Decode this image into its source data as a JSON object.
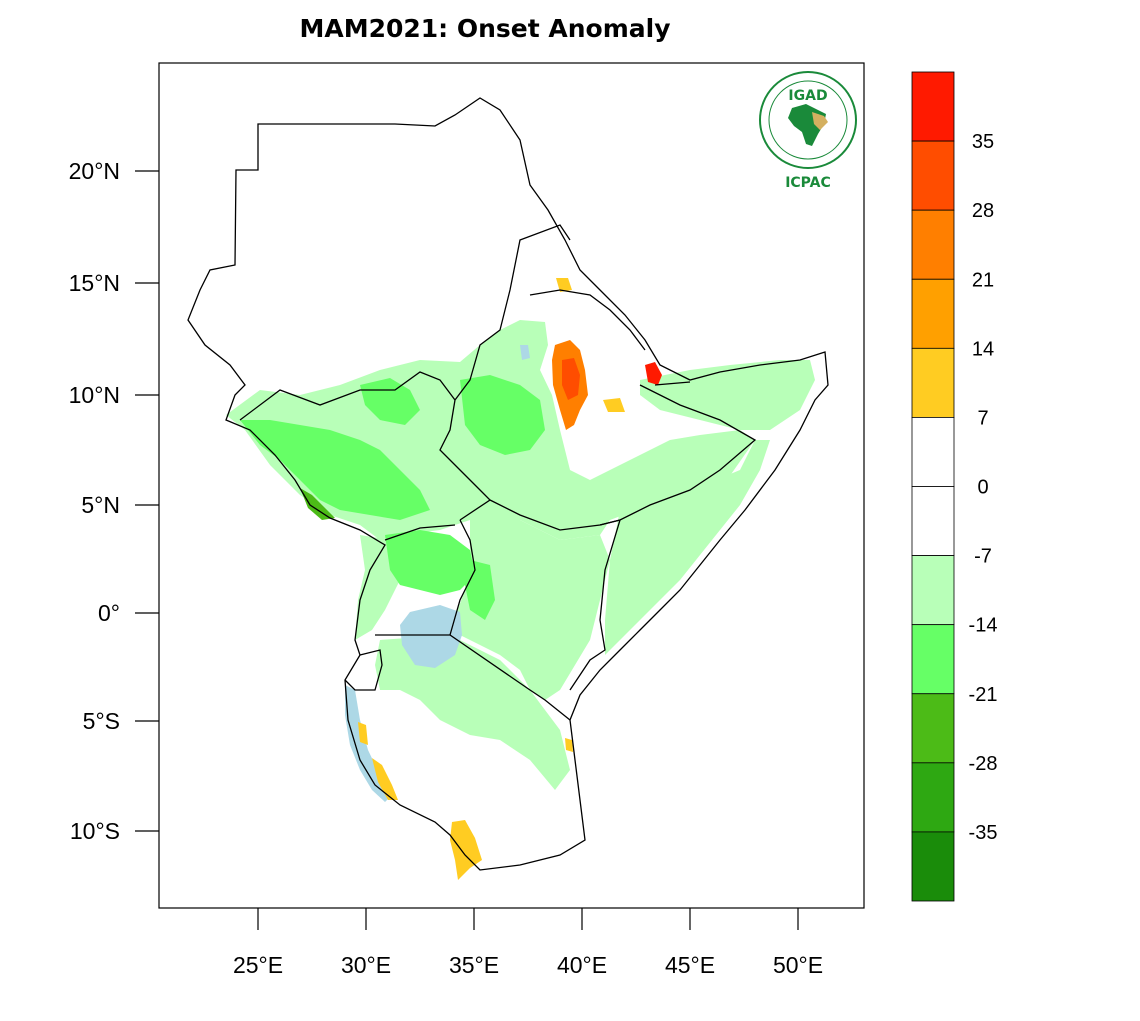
{
  "title": "MAM2021: Onset Anomaly",
  "logo": {
    "top_text": "IGAD",
    "bottom_text": "ICPAC"
  },
  "axes": {
    "lat_labels": [
      "20°N",
      "15°N",
      "10°N",
      "5°N",
      "0°",
      "5°S",
      "10°S"
    ],
    "lat_values": [
      20,
      15,
      10,
      5,
      0,
      -5,
      -10
    ],
    "lon_labels": [
      "25°E",
      "30°E",
      "35°E",
      "40°E",
      "45°E",
      "50°E"
    ],
    "lon_values": [
      25,
      30,
      35,
      40,
      45,
      50
    ]
  },
  "colorbar": {
    "labels": [
      "35",
      "28",
      "21",
      "14",
      "7",
      "0",
      "-7",
      "-14",
      "-21",
      "-28",
      "-35"
    ],
    "colors": [
      "#ff1a00",
      "#ff4d00",
      "#ff7f00",
      "#ffa000",
      "#ffcc22",
      "#ffffff",
      "#ffffff",
      "#b8ffb8",
      "#66ff66",
      "#4cbb17",
      "#2ea812",
      "#1a8c0a"
    ]
  },
  "colors": {
    "lake": "#add8e6",
    "light_green": "#b8ffb8",
    "mid_green": "#66ff66",
    "dark_green": "#4cbb17",
    "yellow": "#ffcc22",
    "orange": "#ff7f00",
    "red": "#ff1a00",
    "border": "#000000"
  }
}
